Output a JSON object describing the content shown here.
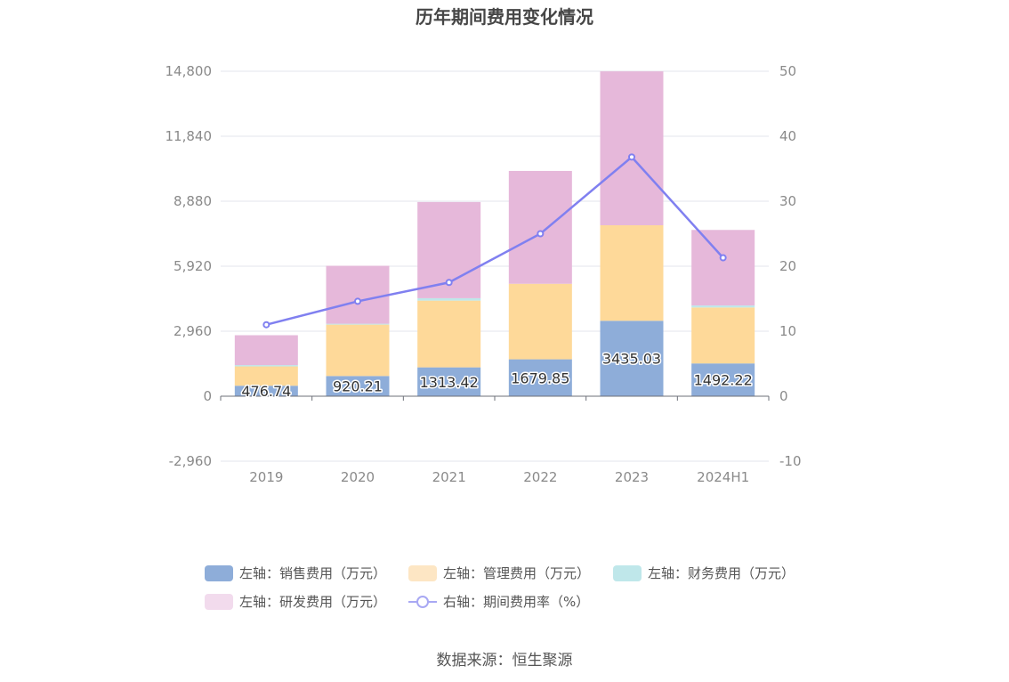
{
  "chart_data": {
    "type": "bar",
    "stacked": true,
    "title": "历年期间费用变化情况",
    "categories": [
      "2019",
      "2020",
      "2021",
      "2022",
      "2023",
      "2024H1"
    ],
    "y_left": {
      "ticks": [
        "-2,960",
        "0",
        "2,960",
        "5,920",
        "8,880",
        "11,840",
        "14,800"
      ],
      "range": [
        -2960,
        14800
      ]
    },
    "y_right": {
      "ticks": [
        "-10",
        "0",
        "10",
        "20",
        "30",
        "40",
        "50"
      ],
      "range": [
        -10,
        50
      ]
    },
    "series": [
      {
        "name": "左轴：销售费用（万元）",
        "axis": "left",
        "color": "#8eadd9",
        "values": [
          476.74,
          920.21,
          1313.42,
          1679.85,
          3435.03,
          1492.22
        ],
        "labels": [
          "476.74",
          "920.21",
          "1313.42",
          "1679.85",
          "3435.03",
          "1492.22"
        ]
      },
      {
        "name": "左轴：管理费用（万元）",
        "axis": "left",
        "color": "#fed999",
        "values": [
          880,
          2340,
          3040,
          3440,
          4350,
          2550
        ]
      },
      {
        "name": "左轴：财务费用（万元）",
        "axis": "left",
        "color": "#bfe7ea",
        "values": [
          60,
          40,
          110,
          0,
          0,
          90
        ]
      },
      {
        "name": "左轴：研发费用（万元）",
        "axis": "left",
        "color": "#e6b8da",
        "values": [
          1360,
          2640,
          4380,
          5140,
          7010,
          3440
        ]
      },
      {
        "name": "右轴：期间费用率（%）",
        "axis": "right",
        "type": "line",
        "color": "#8080f0",
        "values": [
          11.0,
          14.6,
          17.5,
          25.0,
          36.8,
          21.3
        ]
      }
    ]
  },
  "source_text": "数据来源：恒生聚源"
}
